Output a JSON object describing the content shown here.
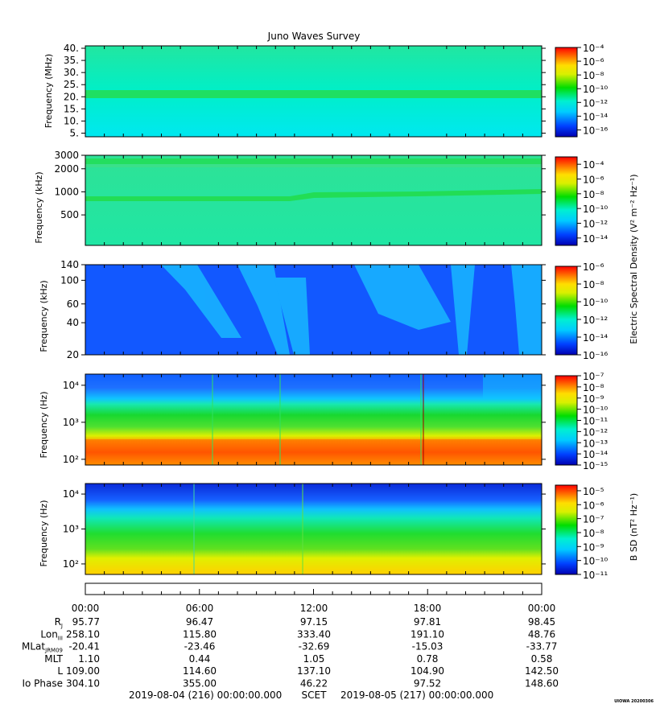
{
  "title": "Juno Waves Survey",
  "stamp": "UIOWA 20200306",
  "colorbar_labels": {
    "e_field": "Electric Spectral Density (V² m⁻² Hz⁻¹)",
    "b_field": "B SD (nT² Hz⁻¹)"
  },
  "chart_data": [
    {
      "type": "heatmap",
      "name": "panel-1",
      "ylabel": "Frequency (MHz)",
      "yscale": "linear",
      "ylim": [
        3.5,
        41
      ],
      "yticks": [
        5,
        10,
        15,
        20,
        25,
        30,
        35,
        40
      ],
      "ytick_labels": [
        "5.",
        "10.",
        "15.",
        "20.",
        "25.",
        "30.",
        "35.",
        "40."
      ],
      "colorbar": {
        "log_min": -17,
        "log_max": -4,
        "ticks": [
          -4,
          -6,
          -8,
          -10,
          -12,
          -14,
          -16
        ]
      },
      "features": [
        {
          "kind": "band",
          "y": 21,
          "color": "#22dd55"
        }
      ]
    },
    {
      "type": "heatmap",
      "name": "panel-2",
      "ylabel": "Frequency (kHz)",
      "yscale": "log",
      "ylim": [
        200,
        3000
      ],
      "yticks": [
        500,
        1000,
        2000,
        3000
      ],
      "ytick_labels": [
        "500",
        "1000",
        "2000",
        "3000"
      ],
      "colorbar": {
        "log_min": -15,
        "log_max": -3,
        "ticks": [
          -4,
          -6,
          -8,
          -10,
          -12,
          -14
        ]
      },
      "features": [
        {
          "kind": "band",
          "y": 2600,
          "color": "#22dd55"
        },
        {
          "kind": "band",
          "y": 2200,
          "color": "#33dd66"
        },
        {
          "kind": "band",
          "y_start": 750,
          "y_end": 900,
          "color": "#22dd55"
        }
      ]
    },
    {
      "type": "heatmap",
      "name": "panel-3",
      "ylabel": "Frequency (kHz)",
      "yscale": "log",
      "ylim": [
        20,
        140
      ],
      "yticks": [
        20,
        40,
        60,
        100,
        140
      ],
      "ytick_labels": [
        "20",
        "40",
        "60",
        "100",
        "140"
      ],
      "colorbar": {
        "log_min": -16,
        "log_max": -6,
        "ticks": [
          -6,
          -8,
          -10,
          -12,
          -14,
          -16
        ]
      }
    },
    {
      "type": "heatmap",
      "name": "panel-4",
      "ylabel": "Frequency (Hz)",
      "yscale": "log",
      "ylim": [
        70,
        20000
      ],
      "yticks": [
        100,
        1000,
        10000
      ],
      "ytick_labels": [
        "10²",
        "10³",
        "10⁴"
      ],
      "colorbar": {
        "log_min": -15,
        "log_max": -7,
        "ticks": [
          -7,
          -8,
          -9,
          -10,
          -11,
          -12,
          -13,
          -14,
          -15
        ]
      }
    },
    {
      "type": "heatmap",
      "name": "panel-5",
      "ylabel": "Frequency (Hz)",
      "yscale": "log",
      "ylim": [
        50,
        20000
      ],
      "yticks": [
        100,
        1000,
        10000
      ],
      "ytick_labels": [
        "10²",
        "10³",
        "10⁴"
      ],
      "colorbar": {
        "log_min": -11,
        "log_max": -4.6,
        "ticks": [
          -5,
          -6,
          -7,
          -8,
          -9,
          -10,
          -11
        ]
      }
    }
  ],
  "time_axis": {
    "ticks": [
      "00:00",
      "06:00",
      "12:00",
      "18:00",
      "00:00"
    ],
    "rows": [
      {
        "label": "R",
        "sub": "J",
        "values": [
          "95.77",
          "96.47",
          "97.15",
          "97.81",
          "98.45"
        ]
      },
      {
        "label": "Lon",
        "sub": "III",
        "values": [
          "258.10",
          "115.80",
          "333.40",
          "191.10",
          "48.76"
        ]
      },
      {
        "label": "MLat",
        "sub": "JRM09",
        "values": [
          "-20.41",
          "-23.46",
          "-32.69",
          "-15.03",
          "-33.77"
        ]
      },
      {
        "label": "MLT",
        "sub": "",
        "values": [
          "1.10",
          "0.44",
          "1.05",
          "0.78",
          "0.58"
        ]
      },
      {
        "label": "L",
        "sub": "",
        "values": [
          "109.00",
          "114.60",
          "137.10",
          "104.90",
          "142.50"
        ]
      },
      {
        "label": "Io Phase",
        "sub": "",
        "values": [
          "304.10",
          "355.00",
          "46.22",
          "97.52",
          "148.60"
        ]
      }
    ],
    "start": "2019-08-04 (216) 00:00:00.000",
    "mid": "SCET",
    "end": "2019-08-05 (217) 00:00:00.000"
  }
}
